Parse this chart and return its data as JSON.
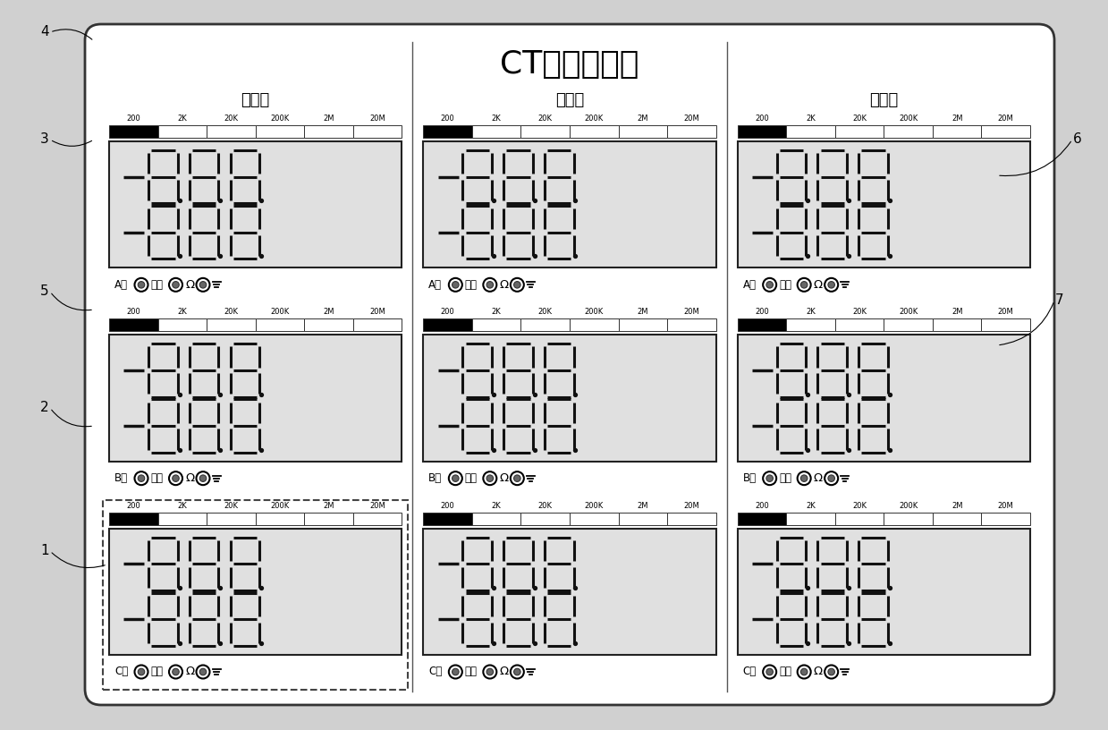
{
  "title": "CT内阻测量仪",
  "groups": [
    "第一组",
    "第二组",
    "第三组"
  ],
  "phase_chars": [
    "A",
    "B",
    "C"
  ],
  "phase_suffix": "相",
  "read_label": "读数",
  "range_labels": [
    "200",
    "2K",
    "20K",
    "200K",
    "2M",
    "20M"
  ],
  "side_numbers": [
    "1",
    "2",
    "3",
    "4",
    "5",
    "6",
    "7"
  ],
  "bg_color": "#d0d0d0",
  "panel_fc": "#ffffff",
  "panel_ec": "#333333",
  "lcd_fc": "#e0e0e0",
  "lcd_ec": "#222222",
  "seg_color": "#111111",
  "divider_color": "#555555",
  "range_bar_fc_active": "#000000",
  "range_bar_fc": "#ffffff",
  "range_bar_ec": "#333333"
}
